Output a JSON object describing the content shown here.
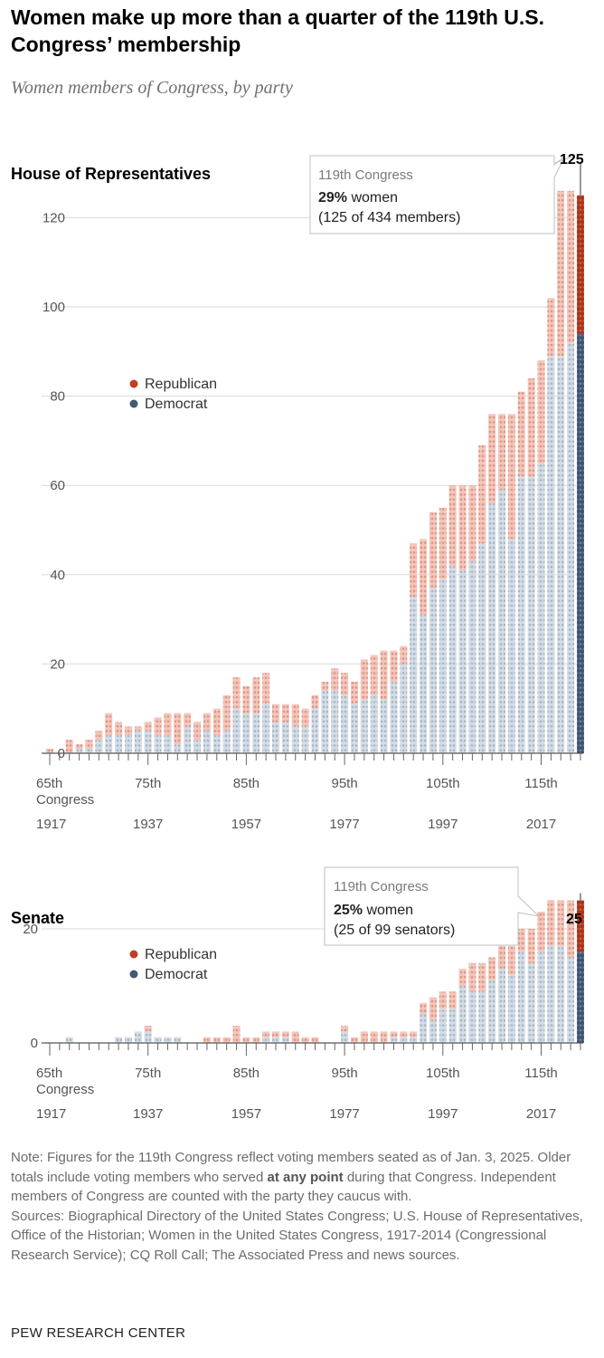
{
  "title": "Women make up more than a quarter of the 119th U.S. Congress’ membership",
  "subtitle": "Women members of Congress, by party",
  "legend": {
    "republican": "Republican",
    "democrat": "Democrat"
  },
  "colors": {
    "republican_light": "#f2c7bd",
    "republican_dot": "#e3937f",
    "democrat_light": "#d4dde6",
    "democrat_dot": "#a7b6c6",
    "republican_dark": "#a8341c",
    "republican_dark_dot": "#d25c42",
    "democrat_dark": "#3f5470",
    "democrat_dark_dot": "#6b82a0",
    "gridline": "#d9d9d9",
    "axis": "#555555"
  },
  "chart_data": [
    {
      "type": "bar",
      "stacked": true,
      "title": "House of Representatives",
      "categories": [
        "65th",
        "66th",
        "67th",
        "68th",
        "69th",
        "70th",
        "71st",
        "72nd",
        "73rd",
        "74th",
        "75th",
        "76th",
        "77th",
        "78th",
        "79th",
        "80th",
        "81st",
        "82nd",
        "83rd",
        "84th",
        "85th",
        "86th",
        "87th",
        "88th",
        "89th",
        "90th",
        "91st",
        "92nd",
        "93rd",
        "94th",
        "95th",
        "96th",
        "97th",
        "98th",
        "99th",
        "100th",
        "101st",
        "102nd",
        "103rd",
        "104th",
        "105th",
        "106th",
        "107th",
        "108th",
        "109th",
        "110th",
        "111th",
        "112th",
        "113th",
        "114th",
        "115th",
        "116th",
        "117th",
        "118th",
        "119th"
      ],
      "x_tick_labels": [
        "65th",
        "75th",
        "85th",
        "95th",
        "105th",
        "115th"
      ],
      "x_tick_sublabel": "Congress",
      "year_labels": [
        "1917",
        "1937",
        "1957",
        "1977",
        "1997",
        "2017"
      ],
      "series": [
        {
          "name": "Democrat",
          "values": [
            0,
            0,
            0,
            1,
            1,
            3,
            4,
            4,
            4,
            5,
            5,
            4,
            4,
            2,
            6,
            3,
            5,
            4,
            5,
            10,
            9,
            9,
            11,
            7,
            7,
            6,
            6,
            10,
            14,
            14,
            13,
            11,
            12,
            13,
            12,
            16,
            20,
            35,
            31,
            37,
            39,
            42,
            41,
            43,
            47,
            56,
            59,
            48,
            62,
            62,
            65,
            89,
            89,
            92,
            94
          ]
        },
        {
          "name": "Republican",
          "values": [
            1,
            0,
            3,
            1,
            2,
            2,
            5,
            3,
            2,
            1,
            2,
            4,
            5,
            7,
            3,
            4,
            4,
            6,
            8,
            7,
            6,
            8,
            7,
            4,
            4,
            5,
            4,
            3,
            2,
            5,
            5,
            5,
            9,
            9,
            11,
            7,
            4,
            12,
            17,
            17,
            16,
            18,
            19,
            17,
            22,
            20,
            17,
            28,
            19,
            22,
            23,
            13,
            37,
            34,
            31
          ]
        }
      ],
      "ylim": [
        0,
        125
      ],
      "yticks": [
        0,
        20,
        40,
        60,
        80,
        100,
        120
      ],
      "total_label": "125",
      "legend_position": "center-left",
      "callout": {
        "heading": "119th Congress",
        "pct": "29%",
        "pct_suffix": " women",
        "detail": "(125 of 434 members)"
      }
    },
    {
      "type": "bar",
      "stacked": true,
      "title": "Senate",
      "categories": [
        "65th",
        "66th",
        "67th",
        "68th",
        "69th",
        "70th",
        "71st",
        "72nd",
        "73rd",
        "74th",
        "75th",
        "76th",
        "77th",
        "78th",
        "79th",
        "80th",
        "81st",
        "82nd",
        "83rd",
        "84th",
        "85th",
        "86th",
        "87th",
        "88th",
        "89th",
        "90th",
        "91st",
        "92nd",
        "93rd",
        "94th",
        "95th",
        "96th",
        "97th",
        "98th",
        "99th",
        "100th",
        "101st",
        "102nd",
        "103rd",
        "104th",
        "105th",
        "106th",
        "107th",
        "108th",
        "109th",
        "110th",
        "111th",
        "112th",
        "113th",
        "114th",
        "115th",
        "116th",
        "117th",
        "118th",
        "119th"
      ],
      "x_tick_labels": [
        "65th",
        "75th",
        "85th",
        "95th",
        "105th",
        "115th"
      ],
      "x_tick_sublabel": "Congress",
      "year_labels": [
        "1917",
        "1937",
        "1957",
        "1977",
        "1997",
        "2017"
      ],
      "series": [
        {
          "name": "Democrat",
          "values": [
            0,
            0,
            1,
            0,
            0,
            0,
            0,
            1,
            1,
            2,
            2,
            1,
            1,
            1,
            0,
            0,
            0,
            0,
            0,
            0,
            0,
            0,
            1,
            1,
            1,
            0,
            0,
            0,
            0,
            0,
            2,
            0,
            0,
            0,
            0,
            1,
            1,
            1,
            5,
            4,
            6,
            6,
            10,
            9,
            9,
            11,
            13,
            12,
            16,
            14,
            16,
            17,
            17,
            15,
            16
          ]
        },
        {
          "name": "Republican",
          "values": [
            0,
            0,
            0,
            0,
            0,
            0,
            0,
            0,
            0,
            0,
            1,
            0,
            0,
            0,
            0,
            0,
            1,
            1,
            1,
            3,
            1,
            1,
            1,
            1,
            1,
            2,
            1,
            1,
            0,
            0,
            1,
            1,
            2,
            2,
            2,
            1,
            1,
            1,
            2,
            4,
            3,
            3,
            3,
            5,
            5,
            4,
            4,
            5,
            4,
            6,
            7,
            8,
            8,
            10,
            9
          ]
        }
      ],
      "ylim": [
        0,
        25
      ],
      "yticks": [
        0,
        20
      ],
      "total_label": "25",
      "legend_position": "left",
      "callout": {
        "heading": "119th Congress",
        "pct": "25%",
        "pct_suffix": " women",
        "detail": "(25 of 99 senators)"
      }
    }
  ],
  "notes": {
    "note_before": "Note: Figures for the 119th Congress reflect voting members seated as of Jan. 3, 2025. Older totals include voting members who served ",
    "note_bold": "at any point",
    "note_after": " during that Congress. Independent members of Congress are counted with the party they caucus with.",
    "sources": "Sources: Biographical Directory of the United States Congress; U.S. House of Representatives, Office of the Historian; Women in the United States Congress, 1917-2014 (Congressional Research Service); CQ Roll Call; The Associated Press and news sources."
  },
  "credit": "PEW RESEARCH CENTER"
}
